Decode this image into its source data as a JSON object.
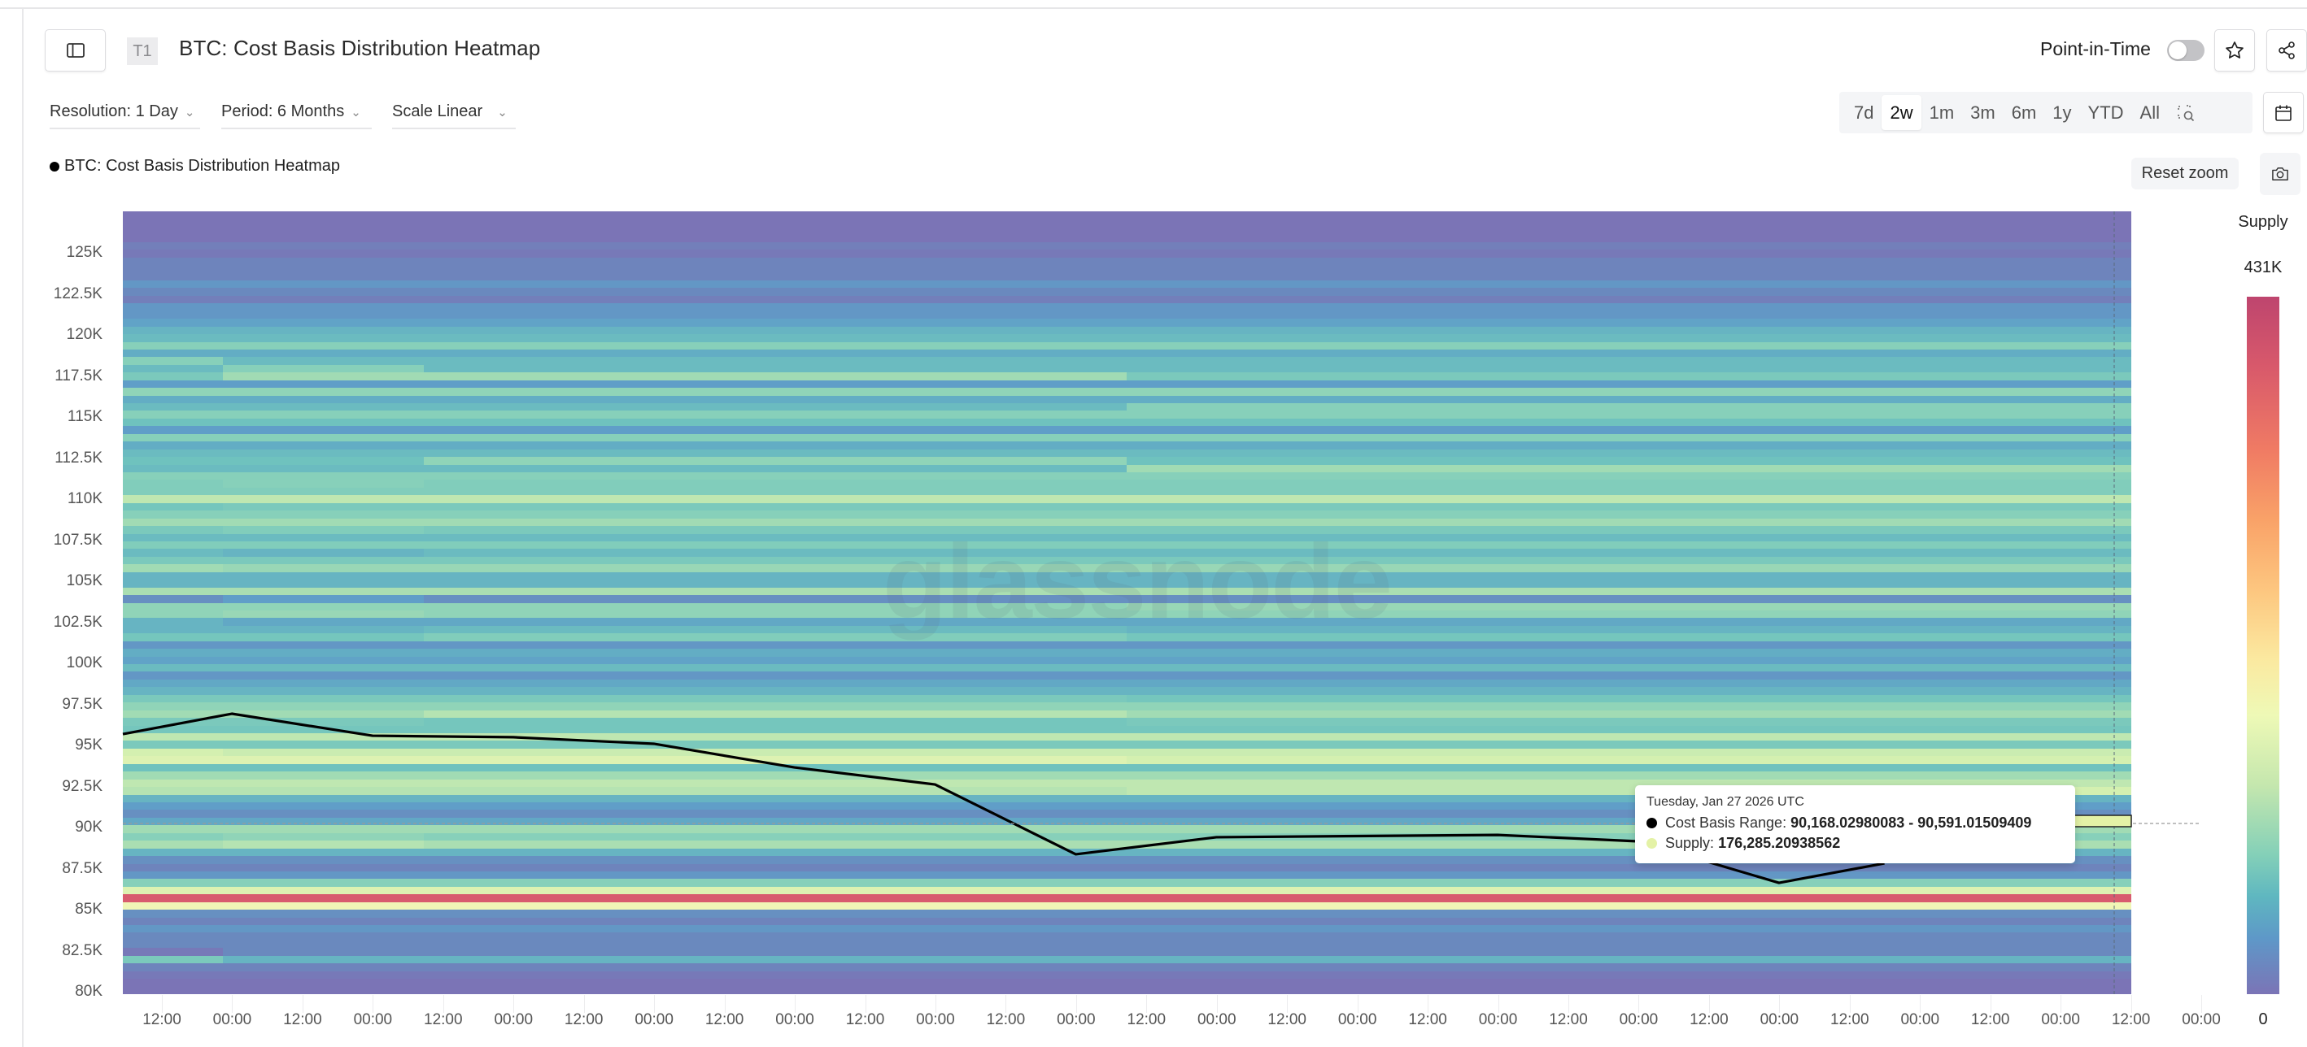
{
  "header": {
    "badge": "T1",
    "title": "BTC: Cost Basis Distribution Heatmap",
    "point_in_time_label": "Point-in-Time",
    "point_in_time_enabled": false
  },
  "controls": {
    "resolution": "Resolution: 1 Day",
    "period": "Period: 6 Months",
    "scale": "Scale Linear",
    "ranges": [
      "7d",
      "2w",
      "1m",
      "3m",
      "6m",
      "1y",
      "YTD",
      "All"
    ],
    "active_range": "2w",
    "reset_zoom": "Reset zoom"
  },
  "legend": {
    "label": "BTC: Cost Basis Distribution Heatmap"
  },
  "colors": {
    "line": "#000000",
    "accent_dot": "#e4f2a6",
    "highlight_cell": "#e4f2a6"
  },
  "tooltip": {
    "date": "Tuesday, Jan 27 2026 UTC",
    "range_label": "Cost Basis Range:",
    "range_value": "90,168.02980083 - 90,591.01509409",
    "supply_label": "Supply:",
    "supply_value": "176,285.20938562"
  },
  "colorbar": {
    "title": "Supply",
    "max_label": "431K",
    "min_label": "0"
  },
  "watermark": "glassnode",
  "chart_data": {
    "type": "heatmap",
    "title": "BTC: Cost Basis Distribution Heatmap",
    "xlabel": "",
    "ylabel": "",
    "colorbar_label": "Supply",
    "colorbar_range": [
      0,
      431000
    ],
    "ylim": [
      80000,
      127500
    ],
    "y_ticks": [
      "80K",
      "82.5K",
      "85K",
      "87.5K",
      "90K",
      "92.5K",
      "95K",
      "97.5K",
      "100K",
      "102.5K",
      "105K",
      "107.5K",
      "110K",
      "112.5K",
      "115K",
      "117.5K",
      "120K",
      "122.5K",
      "125K"
    ],
    "y_tick_values": [
      80000,
      82500,
      85000,
      87500,
      90000,
      92500,
      95000,
      97500,
      100000,
      102500,
      105000,
      107500,
      110000,
      112500,
      115000,
      117500,
      120000,
      122500,
      125000
    ],
    "x_ticks": [
      "12:00",
      "00:00",
      "12:00",
      "00:00",
      "12:00",
      "00:00",
      "12:00",
      "00:00",
      "12:00",
      "00:00",
      "12:00",
      "00:00",
      "12:00",
      "00:00",
      "12:00",
      "00:00",
      "12:00",
      "00:00",
      "12:00",
      "00:00",
      "12:00",
      "00:00",
      "12:00",
      "00:00",
      "12:00",
      "00:00",
      "12:00",
      "00:00",
      "12:00",
      "00:00"
    ],
    "grid": false,
    "price_line": {
      "name": "BTC price",
      "points": [
        {
          "x": -0.78,
          "y": 95690
        },
        {
          "x": 0,
          "y": 96930
        },
        {
          "x": 1,
          "y": 95590
        },
        {
          "x": 2,
          "y": 95500
        },
        {
          "x": 3,
          "y": 95100
        },
        {
          "x": 4,
          "y": 93660
        },
        {
          "x": 5,
          "y": 92620
        },
        {
          "x": 6,
          "y": 88370
        },
        {
          "x": 7,
          "y": 89410
        },
        {
          "x": 8,
          "y": 89480
        },
        {
          "x": 9,
          "y": 89550
        },
        {
          "x": 10,
          "y": 89160
        },
        {
          "x": 11,
          "y": 86630
        },
        {
          "x": 11.75,
          "y": 87820
        }
      ]
    },
    "notable_bands": [
      {
        "range": [
          84700,
          85100
        ],
        "level": "max",
        "note": "red band (highest supply)"
      },
      {
        "range": [
          90168.03,
          90591.02
        ],
        "supply": 176285.21,
        "date": "Tuesday, Jan 27 2026 UTC"
      }
    ],
    "rows_top_to_bottom": [
      [
        0,
        0,
        0,
        0,
        0
      ],
      [
        0,
        0,
        0,
        0,
        0
      ],
      [
        0,
        0,
        0,
        0,
        0
      ],
      [
        0,
        0,
        0,
        0,
        0
      ],
      [
        4,
        4,
        4,
        4,
        4
      ],
      [
        2,
        2,
        2,
        2,
        2
      ],
      [
        6,
        6,
        6,
        6,
        6
      ],
      [
        6,
        6,
        6,
        6,
        6
      ],
      [
        6,
        6,
        6,
        6,
        6
      ],
      [
        12,
        12,
        12,
        12,
        12
      ],
      [
        8,
        8,
        8,
        8,
        8
      ],
      [
        4,
        4,
        4,
        4,
        4
      ],
      [
        12,
        12,
        12,
        12,
        12
      ],
      [
        12,
        12,
        12,
        12,
        12
      ],
      [
        16,
        16,
        16,
        16,
        16
      ],
      [
        22,
        22,
        22,
        22,
        22
      ],
      [
        24,
        24,
        24,
        24,
        24
      ],
      [
        34,
        34,
        34,
        34,
        34
      ],
      [
        20,
        20,
        20,
        20,
        20
      ],
      [
        34,
        24,
        24,
        24,
        24
      ],
      [
        24,
        34,
        24,
        24,
        24
      ],
      [
        30,
        40,
        40,
        30,
        30
      ],
      [
        14,
        14,
        14,
        14,
        14
      ],
      [
        36,
        36,
        36,
        36,
        36
      ],
      [
        20,
        20,
        20,
        20,
        20
      ],
      [
        24,
        24,
        24,
        34,
        34
      ],
      [
        34,
        34,
        34,
        34,
        34
      ],
      [
        26,
        26,
        26,
        26,
        26
      ],
      [
        14,
        14,
        14,
        14,
        14
      ],
      [
        34,
        34,
        34,
        34,
        34
      ],
      [
        20,
        20,
        20,
        20,
        20
      ],
      [
        24,
        24,
        24,
        24,
        24
      ],
      [
        26,
        26,
        36,
        26,
        26
      ],
      [
        24,
        24,
        24,
        40,
        40
      ],
      [
        34,
        34,
        34,
        34,
        34
      ],
      [
        32,
        34,
        32,
        32,
        32
      ],
      [
        32,
        32,
        32,
        32,
        32
      ],
      [
        46,
        46,
        46,
        46,
        46
      ],
      [
        28,
        30,
        30,
        30,
        30
      ],
      [
        34,
        34,
        34,
        34,
        34
      ],
      [
        40,
        40,
        40,
        40,
        40
      ],
      [
        30,
        32,
        30,
        30,
        30
      ],
      [
        24,
        24,
        24,
        24,
        24
      ],
      [
        32,
        32,
        32,
        32,
        32
      ],
      [
        24,
        22,
        24,
        24,
        24
      ],
      [
        30,
        30,
        30,
        30,
        30
      ],
      [
        40,
        38,
        38,
        38,
        38
      ],
      [
        22,
        22,
        22,
        22,
        22
      ],
      [
        22,
        22,
        22,
        22,
        22
      ],
      [
        42,
        42,
        42,
        42,
        42
      ],
      [
        10,
        14,
        10,
        10,
        10
      ],
      [
        36,
        36,
        36,
        38,
        38
      ],
      [
        36,
        38,
        36,
        36,
        36
      ],
      [
        22,
        18,
        18,
        18,
        18
      ],
      [
        22,
        22,
        24,
        22,
        22
      ],
      [
        28,
        28,
        32,
        28,
        28
      ],
      [
        12,
        12,
        12,
        12,
        12
      ],
      [
        20,
        20,
        20,
        20,
        20
      ],
      [
        16,
        16,
        16,
        16,
        16
      ],
      [
        24,
        24,
        24,
        24,
        24
      ],
      [
        12,
        12,
        12,
        12,
        12
      ],
      [
        18,
        18,
        18,
        18,
        18
      ],
      [
        22,
        22,
        22,
        22,
        22
      ],
      [
        30,
        30,
        30,
        28,
        28
      ],
      [
        36,
        36,
        36,
        36,
        36
      ],
      [
        40,
        40,
        44,
        40,
        40
      ],
      [
        30,
        30,
        28,
        30,
        30
      ],
      [
        28,
        28,
        28,
        28,
        28
      ],
      [
        46,
        46,
        46,
        46,
        46
      ],
      [
        30,
        30,
        30,
        30,
        30
      ],
      [
        50,
        48,
        48,
        48,
        48
      ],
      [
        52,
        52,
        52,
        50,
        50
      ],
      [
        26,
        26,
        26,
        26,
        26
      ],
      [
        40,
        40,
        40,
        40,
        40
      ],
      [
        46,
        46,
        46,
        46,
        46
      ],
      [
        44,
        44,
        44,
        46,
        50
      ],
      [
        22,
        22,
        22,
        22,
        22
      ],
      [
        14,
        14,
        14,
        14,
        14
      ],
      [
        10,
        10,
        10,
        10,
        10
      ],
      [
        18,
        18,
        18,
        18,
        18
      ],
      [
        40,
        40,
        40,
        40,
        40
      ],
      [
        34,
        36,
        34,
        34,
        34
      ],
      [
        42,
        44,
        42,
        42,
        42
      ],
      [
        22,
        22,
        22,
        22,
        22
      ],
      [
        10,
        10,
        10,
        10,
        10
      ],
      [
        6,
        6,
        6,
        6,
        6
      ],
      [
        12,
        12,
        12,
        12,
        12
      ],
      [
        34,
        34,
        34,
        34,
        34
      ],
      [
        52,
        52,
        52,
        52,
        52
      ],
      [
        88,
        88,
        88,
        88,
        88
      ],
      [
        56,
        56,
        56,
        56,
        56
      ],
      [
        10,
        10,
        10,
        10,
        10
      ],
      [
        6,
        6,
        6,
        6,
        6
      ],
      [
        12,
        12,
        12,
        12,
        12
      ],
      [
        8,
        8,
        8,
        8,
        8
      ],
      [
        8,
        8,
        8,
        8,
        8
      ],
      [
        2,
        8,
        8,
        8,
        8
      ],
      [
        30,
        22,
        22,
        22,
        22
      ],
      [
        6,
        6,
        6,
        6,
        6
      ],
      [
        2,
        2,
        2,
        2,
        2
      ],
      [
        0,
        0,
        0,
        0,
        0
      ],
      [
        0,
        0,
        0,
        0,
        0
      ]
    ]
  }
}
